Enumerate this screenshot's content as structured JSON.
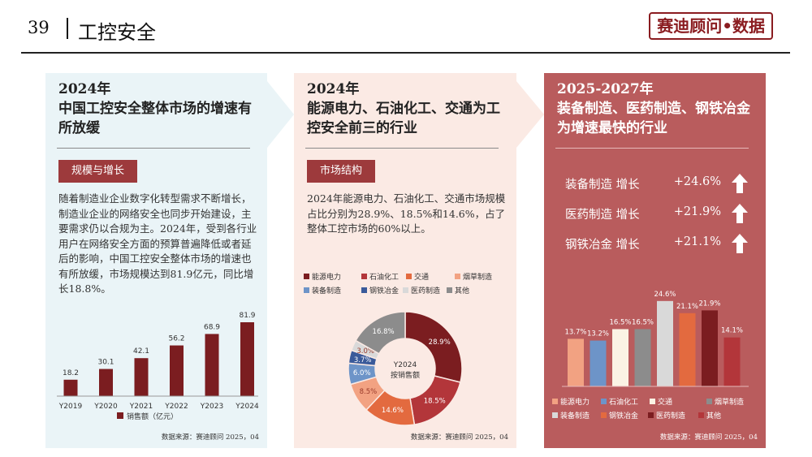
{
  "header": {
    "page_number": "39",
    "title": "工控安全",
    "brand": "赛迪顾问•数据"
  },
  "panel1": {
    "title_line1": "2024年",
    "title_line2": "中国工控安全整体市场的增速有所放缓",
    "tag": "规模与增长",
    "paragraph": "随着制造业企业数字化转型需求不断增长，制造业企业的网络安全也同步开始建设，主要需求仍以合规为主。2024年，受到各行业用户在网络安全方面的预算普遍降低或者延后的影响，中国工控安全整体市场的增速也有所放缓，市场规模达到81.9亿元，同比增长18.8%。",
    "legend": "销售额（亿元）",
    "source": "数据来源：赛迪顾问  2025，04"
  },
  "panel2": {
    "title_line1": "2024年",
    "title_line2": "能源电力、石油化工、交通为工控安全前三的行业",
    "tag": "市场结构",
    "paragraph": "2024年能源电力、石油化工、交通市场规模占比分别为28.9%、18.5%和14.6%，占了整体工控市场的60%以上。",
    "donut_center_line1": "Y2024",
    "donut_center_line2": "按销售额",
    "source": "数据来源：赛迪顾问  2025，04"
  },
  "panel3": {
    "title_line1": "2025-2027年",
    "title_line2": "装备制造、医药制造、钢铁冶金为增速最快的行业",
    "growth": [
      {
        "label": "装备制造 增长",
        "value": "+24.6%"
      },
      {
        "label": "医药制造 增长",
        "value": "+21.9%"
      },
      {
        "label": "钢铁冶金 增长",
        "value": "+21.1%"
      }
    ],
    "source": "数据来源：赛迪顾问  2025，04"
  },
  "colors": {
    "dark_red": "#7b1d20",
    "red": "#b3363a",
    "orange": "#e36a3f",
    "salmon": "#f2a282",
    "blue": "#6d94c8",
    "navy": "#3a5a9a",
    "light_gray": "#d9d9d9",
    "gray": "#8c8c8c",
    "cream": "#fbf3e4"
  },
  "chart_data": [
    {
      "type": "bar",
      "title": "",
      "categories": [
        "Y2019",
        "Y2020",
        "Y2021",
        "Y2022",
        "Y2023",
        "Y2024"
      ],
      "values": [
        18.2,
        30.1,
        42.1,
        56.2,
        68.9,
        81.9
      ],
      "series_name": "销售额（亿元）",
      "ylim": [
        0,
        90
      ]
    },
    {
      "type": "pie",
      "subtype": "donut",
      "categories": [
        "能源电力",
        "石油化工",
        "交通",
        "烟草制造",
        "装备制造",
        "钢铁冶金",
        "医药制造",
        "其他"
      ],
      "values": [
        28.9,
        18.5,
        14.6,
        8.5,
        6.0,
        3.7,
        3.0,
        16.8
      ],
      "labels": [
        "28.9%",
        "18.5%",
        "14.6%",
        "8.5%",
        "6.0%",
        "3.7%",
        "3.0%",
        "16.8%"
      ],
      "colors": [
        "#7b1d20",
        "#b3363a",
        "#e36a3f",
        "#f2a282",
        "#6d94c8",
        "#3a5a9a",
        "#d9d9d9",
        "#8c8c8c"
      ]
    },
    {
      "type": "bar",
      "title": "",
      "categories": [
        "能源电力",
        "石油化工",
        "交通",
        "烟草制造",
        "装备制造",
        "钢铁冶金",
        "医药制造",
        "其他"
      ],
      "values": [
        13.7,
        13.2,
        16.5,
        16.5,
        24.6,
        21.1,
        21.9,
        14.1
      ],
      "labels": [
        "13.7%",
        "13.2%",
        "16.5%",
        "16.5%",
        "24.6%",
        "21.1%",
        "21.9%",
        "14.1%"
      ],
      "colors": [
        "#f2a282",
        "#6d94c8",
        "#fbf3e4",
        "#8c8c8c",
        "#d9d9d9",
        "#e36a3f",
        "#7b1d20",
        "#b3363a"
      ],
      "ylim": [
        0,
        30
      ]
    }
  ]
}
